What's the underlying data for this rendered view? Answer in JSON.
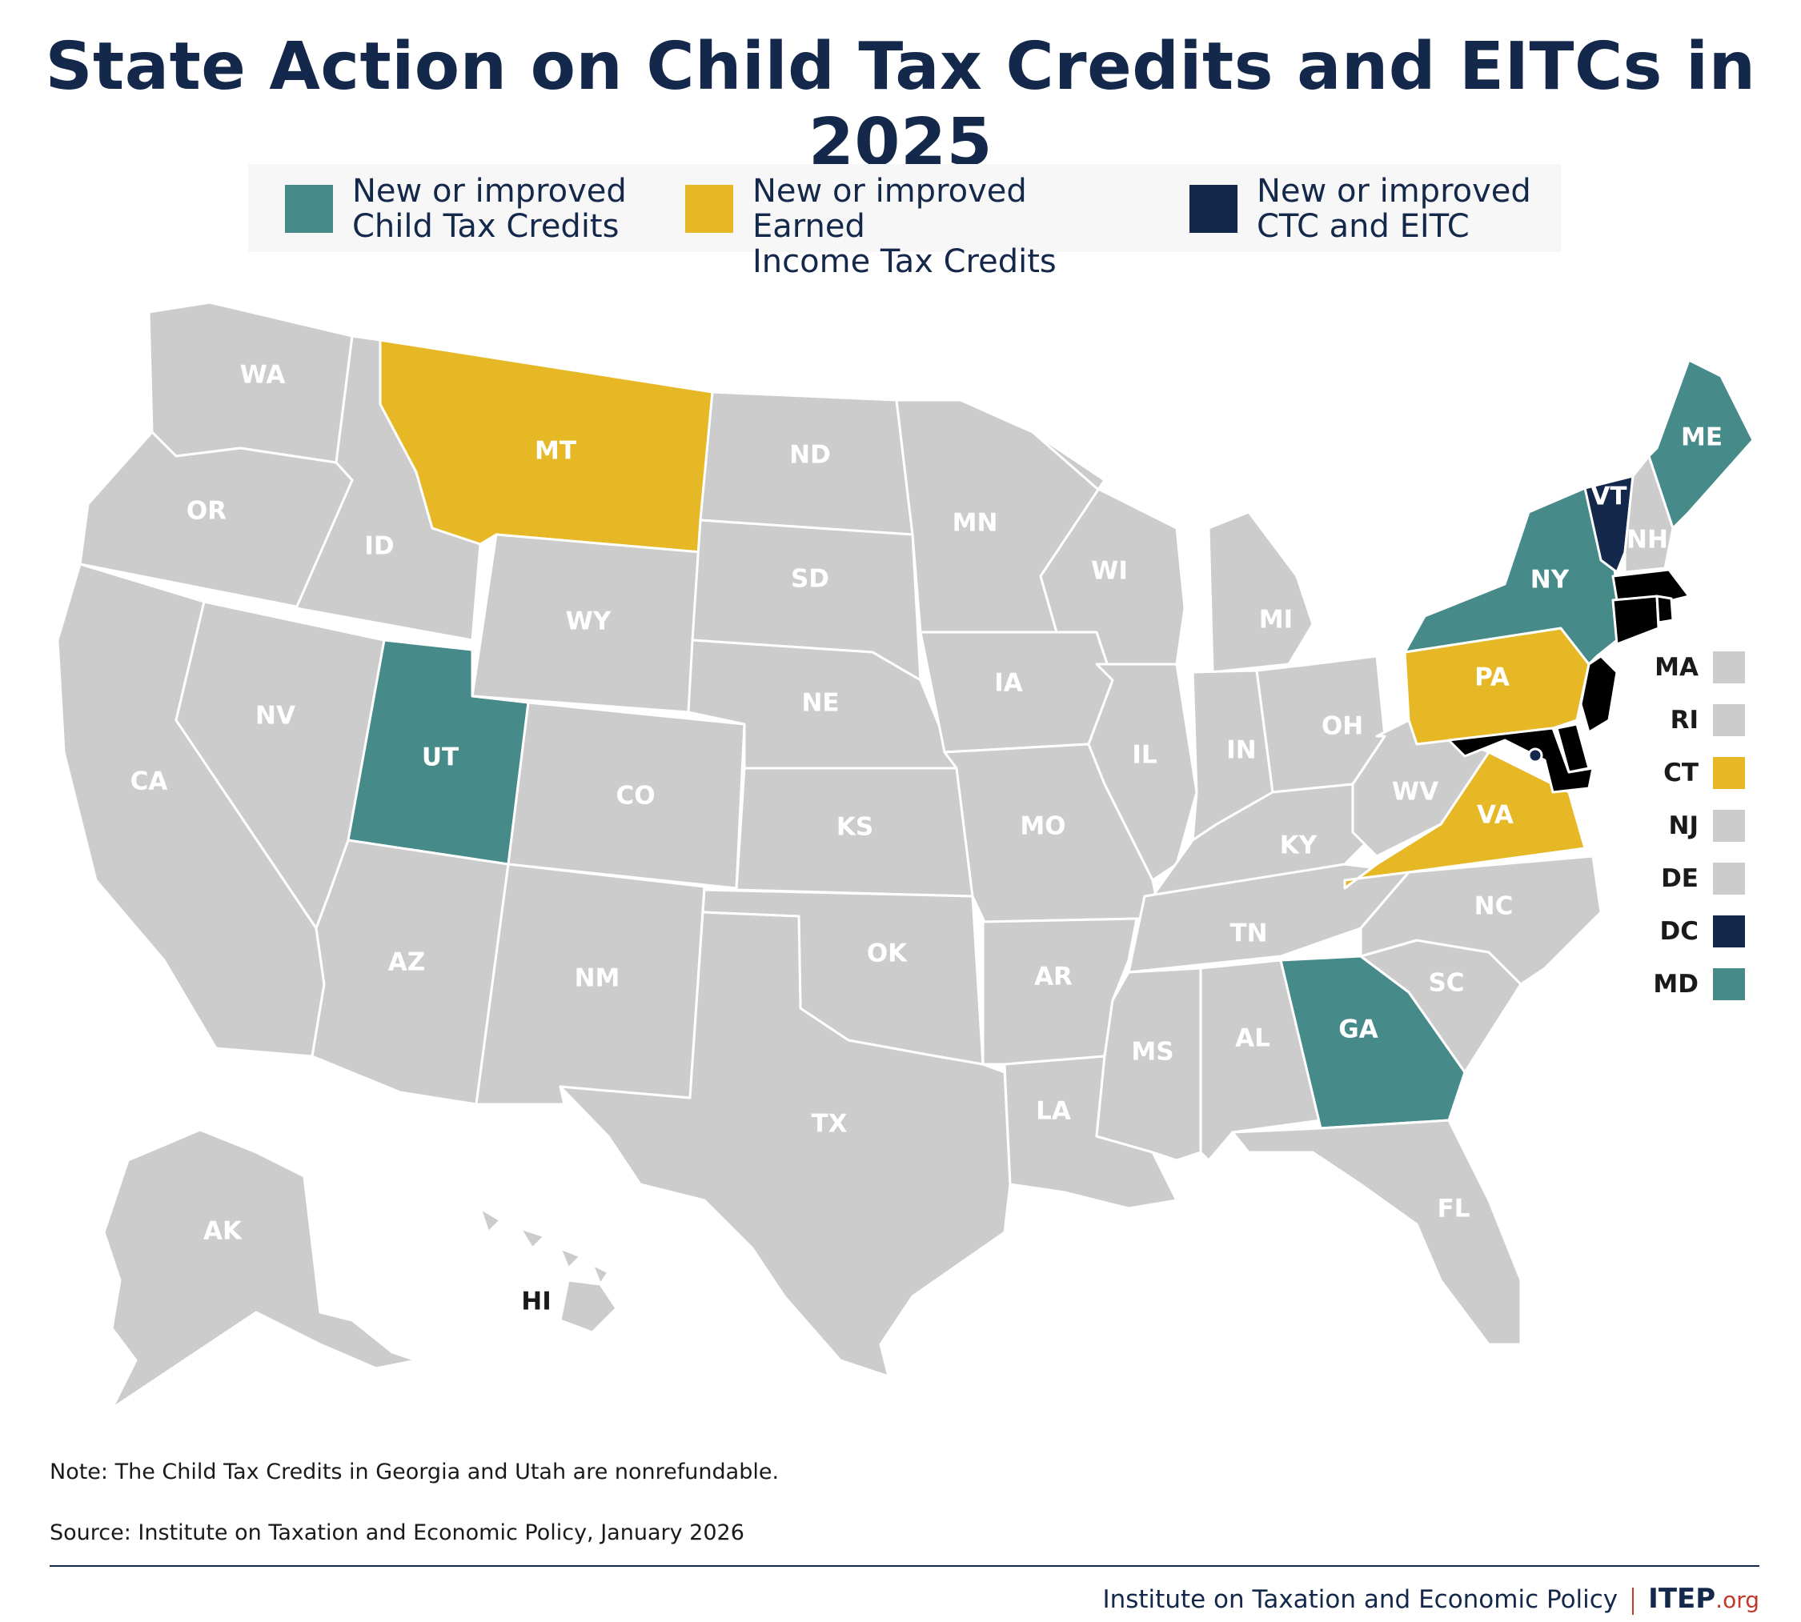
{
  "title": "State Action on Child Tax Credits and EITCs in 2025",
  "colors": {
    "ctc": "#468a8a",
    "eitc": "#e6b826",
    "both": "#14284b",
    "none": "#cccccc"
  },
  "legend": [
    {
      "key": "ctc",
      "line1": "New or improved",
      "line2": "Child Tax Credits"
    },
    {
      "key": "eitc",
      "line1": "New or improved Earned",
      "line2": "Income Tax Credits"
    },
    {
      "key": "both",
      "line1": "New or improved",
      "line2": "CTC and EITC"
    }
  ],
  "states": {
    "WA": "none",
    "OR": "none",
    "CA": "none",
    "ID": "none",
    "NV": "none",
    "MT": "eitc",
    "WY": "none",
    "UT": "ctc",
    "AZ": "none",
    "CO": "none",
    "NM": "none",
    "ND": "none",
    "SD": "none",
    "NE": "none",
    "KS": "none",
    "OK": "none",
    "TX": "none",
    "MN": "none",
    "IA": "none",
    "MO": "none",
    "AR": "none",
    "LA": "none",
    "WI": "none",
    "IL": "none",
    "MS": "none",
    "MI": "none",
    "IN": "none",
    "KY": "none",
    "TN": "none",
    "AL": "none",
    "OH": "none",
    "WV": "none",
    "VA": "eitc",
    "NC": "none",
    "SC": "none",
    "GA": "ctc",
    "FL": "none",
    "PA": "eitc",
    "NY": "ctc",
    "VT": "both",
    "NH": "none",
    "ME": "ctc",
    "AK": "none",
    "HI": "none"
  },
  "small_states": [
    {
      "label": "MA",
      "key": "none"
    },
    {
      "label": "RI",
      "key": "none"
    },
    {
      "label": "CT",
      "key": "eitc"
    },
    {
      "label": "NJ",
      "key": "none"
    },
    {
      "label": "DE",
      "key": "none"
    },
    {
      "label": "DC",
      "key": "both"
    },
    {
      "label": "MD",
      "key": "ctc"
    }
  ],
  "notes": {
    "note": "Note: The Child Tax Credits in Georgia and Utah are nonrefundable.",
    "source": "Source: Institute on Taxation and Economic Policy, January 2026"
  },
  "footer": {
    "org_name": "Institute on Taxation and Economic Policy",
    "logo_main": "ITEP",
    "logo_suffix": ".org"
  }
}
